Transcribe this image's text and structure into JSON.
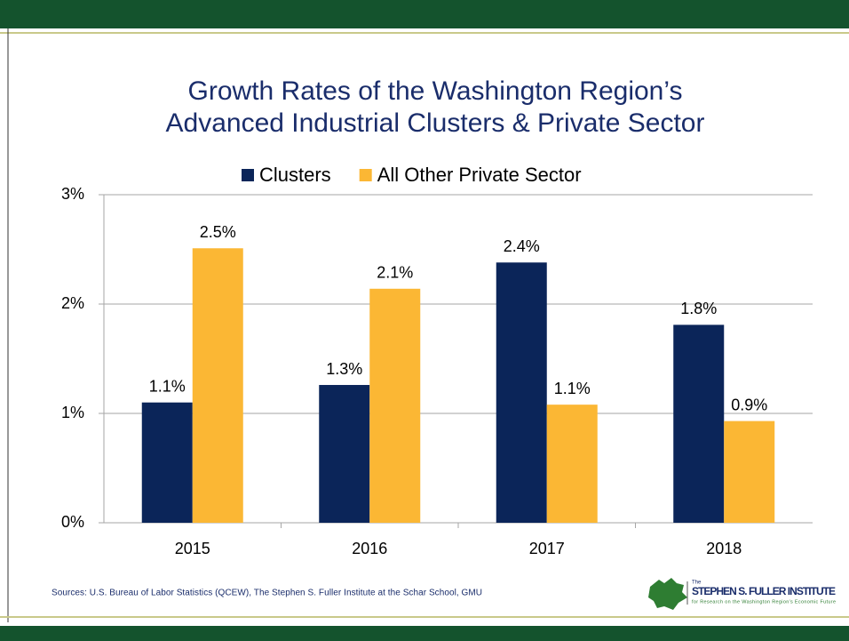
{
  "chart_data": {
    "type": "bar",
    "title": [
      "Growth Rates of the Washington Region’s",
      "Advanced Industrial Clusters & Private Sector"
    ],
    "categories": [
      "2015",
      "2016",
      "2017",
      "2018"
    ],
    "series": [
      {
        "name": "Clusters",
        "color": "#0b2559",
        "values": [
          1.1,
          1.26,
          2.38,
          1.81
        ],
        "value_labels": [
          "1.1%",
          "1.3%",
          "2.4%",
          "1.8%"
        ]
      },
      {
        "name": "All Other Private Sector",
        "color": "#fbb734",
        "values": [
          2.51,
          2.14,
          1.08,
          0.93
        ],
        "value_labels": [
          "2.5%",
          "2.1%",
          "1.1%",
          "0.9%"
        ]
      }
    ],
    "ylim": [
      0,
      3
    ],
    "yticks": [
      {
        "value": 0,
        "label": "0%"
      },
      {
        "value": 1,
        "label": "1%"
      },
      {
        "value": 2,
        "label": "2%"
      },
      {
        "value": 3,
        "label": "3%"
      }
    ],
    "grid": true,
    "legend": "top",
    "source": "Sources: U.S. Bureau of Labor Statistics (QCEW), The Stephen S. Fuller Institute at the Schar School, GMU"
  },
  "logo": {
    "small": "The",
    "name": "STEPHEN S. FULLER INSTITUTE",
    "tagline": "for Research on the Washington Region's Economic Future"
  }
}
